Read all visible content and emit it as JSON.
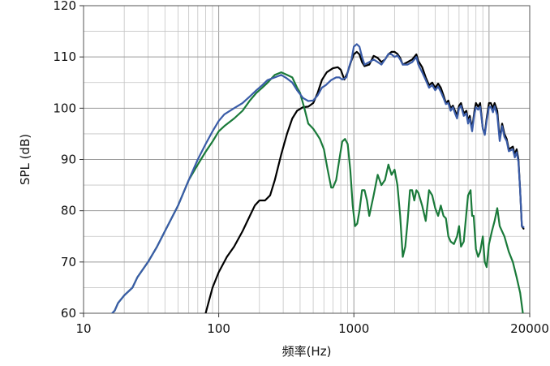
{
  "chart_data": {
    "type": "line",
    "title": "",
    "xlabel": "频率(Hz)",
    "ylabel": "SPL (dB)",
    "xscale": "log",
    "xlim": [
      10,
      20000
    ],
    "ylim": [
      60,
      120
    ],
    "grid": true,
    "legend": "none",
    "x_tick_labels": [
      {
        "value": 10,
        "label": "10"
      },
      {
        "value": 100,
        "label": "100"
      },
      {
        "value": 1000,
        "label": "1000"
      },
      {
        "value": 20000,
        "label": "20000"
      }
    ],
    "y_tick_labels": [
      {
        "value": 60,
        "label": "60"
      },
      {
        "value": 70,
        "label": "70"
      },
      {
        "value": 80,
        "label": "80"
      },
      {
        "value": 90,
        "label": "90"
      },
      {
        "value": 100,
        "label": "100"
      },
      {
        "value": 110,
        "label": "110"
      },
      {
        "value": 120,
        "label": "120"
      }
    ],
    "series": [
      {
        "color": "#000000",
        "points": [
          [
            75,
            58
          ],
          [
            80,
            60
          ],
          [
            90,
            65
          ],
          [
            100,
            68
          ],
          [
            115,
            71
          ],
          [
            130,
            73
          ],
          [
            150,
            76
          ],
          [
            170,
            79
          ],
          [
            185,
            81
          ],
          [
            200,
            82
          ],
          [
            220,
            82
          ],
          [
            240,
            83
          ],
          [
            260,
            86
          ],
          [
            290,
            91
          ],
          [
            320,
            95
          ],
          [
            350,
            98
          ],
          [
            380,
            99.5
          ],
          [
            420,
            100.2
          ],
          [
            460,
            100.3
          ],
          [
            500,
            101
          ],
          [
            540,
            103
          ],
          [
            580,
            105.5
          ],
          [
            630,
            107
          ],
          [
            700,
            107.8
          ],
          [
            760,
            108
          ],
          [
            800,
            107.5
          ],
          [
            850,
            105.6
          ],
          [
            900,
            107
          ],
          [
            950,
            109
          ],
          [
            1000,
            110.5
          ],
          [
            1050,
            111
          ],
          [
            1100,
            110.5
          ],
          [
            1150,
            109
          ],
          [
            1200,
            108.2
          ],
          [
            1300,
            108.5
          ],
          [
            1400,
            110.2
          ],
          [
            1500,
            109.8
          ],
          [
            1600,
            109
          ],
          [
            1700,
            109.5
          ],
          [
            1800,
            110.5
          ],
          [
            1900,
            111
          ],
          [
            2000,
            111
          ],
          [
            2100,
            110.6
          ],
          [
            2200,
            109.8
          ],
          [
            2300,
            108.5
          ],
          [
            2500,
            109
          ],
          [
            2700,
            109.5
          ],
          [
            2900,
            110.5
          ],
          [
            3000,
            109.2
          ],
          [
            3200,
            108
          ],
          [
            3400,
            106
          ],
          [
            3600,
            104.5
          ],
          [
            3800,
            105
          ],
          [
            4000,
            104
          ],
          [
            4200,
            104.8
          ],
          [
            4400,
            104
          ],
          [
            4600,
            102.5
          ],
          [
            4800,
            101
          ],
          [
            5000,
            101.5
          ],
          [
            5200,
            100
          ],
          [
            5400,
            100.5
          ],
          [
            5600,
            99.5
          ],
          [
            5800,
            98.5
          ],
          [
            6000,
            100.5
          ],
          [
            6200,
            101
          ],
          [
            6500,
            99
          ],
          [
            6800,
            99.5
          ],
          [
            7000,
            97.5
          ],
          [
            7200,
            98.5
          ],
          [
            7500,
            96
          ],
          [
            7800,
            99.5
          ],
          [
            8000,
            101
          ],
          [
            8300,
            100.3
          ],
          [
            8600,
            101
          ],
          [
            9000,
            96
          ],
          [
            9300,
            95
          ],
          [
            9600,
            98
          ],
          [
            10000,
            101
          ],
          [
            10300,
            101
          ],
          [
            10700,
            100
          ],
          [
            11000,
            101
          ],
          [
            11500,
            99.5
          ],
          [
            12000,
            94
          ],
          [
            12500,
            97
          ],
          [
            13000,
            95
          ],
          [
            13500,
            94
          ],
          [
            14000,
            92
          ],
          [
            15000,
            92.5
          ],
          [
            15500,
            91
          ],
          [
            16000,
            92
          ],
          [
            16500,
            90
          ],
          [
            17000,
            84
          ],
          [
            17500,
            77
          ],
          [
            18000,
            76.5
          ]
        ]
      },
      {
        "color": "#1a7a3a",
        "points": [
          [
            15,
            59
          ],
          [
            17,
            60.5
          ],
          [
            18,
            62
          ],
          [
            20,
            63.5
          ],
          [
            23,
            65
          ],
          [
            25,
            67
          ],
          [
            30,
            70
          ],
          [
            35,
            73
          ],
          [
            40,
            76
          ],
          [
            50,
            81
          ],
          [
            60,
            86
          ],
          [
            70,
            89
          ],
          [
            80,
            91.5
          ],
          [
            90,
            93.5
          ],
          [
            100,
            95.5
          ],
          [
            110,
            96.5
          ],
          [
            130,
            98
          ],
          [
            150,
            99.5
          ],
          [
            170,
            101.5
          ],
          [
            190,
            103
          ],
          [
            210,
            104
          ],
          [
            230,
            105
          ],
          [
            260,
            106.5
          ],
          [
            290,
            107
          ],
          [
            320,
            106.5
          ],
          [
            350,
            106
          ],
          [
            380,
            104
          ],
          [
            400,
            103
          ],
          [
            430,
            100
          ],
          [
            460,
            97
          ],
          [
            500,
            96
          ],
          [
            530,
            95
          ],
          [
            560,
            94
          ],
          [
            600,
            92
          ],
          [
            640,
            88
          ],
          [
            680,
            84.5
          ],
          [
            700,
            84.5
          ],
          [
            740,
            86
          ],
          [
            780,
            90
          ],
          [
            820,
            93.5
          ],
          [
            860,
            94
          ],
          [
            900,
            93
          ],
          [
            940,
            88
          ],
          [
            980,
            81
          ],
          [
            1020,
            77
          ],
          [
            1060,
            77.5
          ],
          [
            1100,
            80
          ],
          [
            1150,
            84
          ],
          [
            1200,
            84
          ],
          [
            1250,
            82
          ],
          [
            1300,
            79
          ],
          [
            1400,
            83
          ],
          [
            1500,
            87
          ],
          [
            1600,
            85
          ],
          [
            1700,
            86
          ],
          [
            1800,
            89
          ],
          [
            1900,
            87
          ],
          [
            2000,
            88
          ],
          [
            2100,
            85
          ],
          [
            2200,
            79
          ],
          [
            2300,
            71
          ],
          [
            2400,
            73
          ],
          [
            2500,
            78
          ],
          [
            2600,
            84
          ],
          [
            2700,
            84
          ],
          [
            2800,
            82
          ],
          [
            2900,
            84
          ],
          [
            3000,
            83.5
          ],
          [
            3200,
            81
          ],
          [
            3400,
            78
          ],
          [
            3600,
            84
          ],
          [
            3800,
            83
          ],
          [
            4000,
            80.5
          ],
          [
            4200,
            79
          ],
          [
            4400,
            81
          ],
          [
            4600,
            79
          ],
          [
            4800,
            78.5
          ],
          [
            5000,
            75
          ],
          [
            5200,
            74
          ],
          [
            5500,
            73.5
          ],
          [
            5800,
            75
          ],
          [
            6000,
            77
          ],
          [
            6200,
            73
          ],
          [
            6500,
            74
          ],
          [
            6800,
            79.5
          ],
          [
            7000,
            83
          ],
          [
            7300,
            84
          ],
          [
            7500,
            79
          ],
          [
            7700,
            79
          ],
          [
            8000,
            72.5
          ],
          [
            8300,
            71
          ],
          [
            8600,
            72
          ],
          [
            9000,
            75
          ],
          [
            9300,
            70
          ],
          [
            9600,
            69
          ],
          [
            10000,
            73.5
          ],
          [
            10500,
            76
          ],
          [
            11000,
            78
          ],
          [
            11500,
            80.5
          ],
          [
            12000,
            77
          ],
          [
            13000,
            75
          ],
          [
            14000,
            72
          ],
          [
            15000,
            70
          ],
          [
            16000,
            67
          ],
          [
            17000,
            64
          ],
          [
            18000,
            59
          ]
        ]
      },
      {
        "color": "#3a5ca8",
        "points": [
          [
            15,
            59
          ],
          [
            17,
            60.5
          ],
          [
            18,
            62
          ],
          [
            20,
            63.5
          ],
          [
            23,
            65
          ],
          [
            25,
            67
          ],
          [
            30,
            70
          ],
          [
            35,
            73
          ],
          [
            40,
            76
          ],
          [
            50,
            81
          ],
          [
            60,
            86
          ],
          [
            70,
            90
          ],
          [
            80,
            93
          ],
          [
            90,
            95.5
          ],
          [
            100,
            97.5
          ],
          [
            110,
            98.8
          ],
          [
            130,
            100
          ],
          [
            150,
            101
          ],
          [
            170,
            102.3
          ],
          [
            190,
            103.5
          ],
          [
            210,
            104.5
          ],
          [
            230,
            105.5
          ],
          [
            260,
            106
          ],
          [
            290,
            106.5
          ],
          [
            320,
            105.8
          ],
          [
            350,
            105
          ],
          [
            380,
            103.5
          ],
          [
            420,
            102
          ],
          [
            460,
            101.4
          ],
          [
            500,
            101.5
          ],
          [
            540,
            102.5
          ],
          [
            580,
            104
          ],
          [
            620,
            104.5
          ],
          [
            680,
            105.5
          ],
          [
            740,
            106
          ],
          [
            780,
            106
          ],
          [
            820,
            105.6
          ],
          [
            880,
            106
          ],
          [
            920,
            108
          ],
          [
            960,
            109.5
          ],
          [
            1000,
            112
          ],
          [
            1050,
            112.5
          ],
          [
            1100,
            112
          ],
          [
            1150,
            110
          ],
          [
            1200,
            108.5
          ],
          [
            1300,
            109
          ],
          [
            1400,
            109.5
          ],
          [
            1500,
            109
          ],
          [
            1600,
            108.5
          ],
          [
            1700,
            109.5
          ],
          [
            1800,
            110.6
          ],
          [
            1900,
            110.5
          ],
          [
            2000,
            110
          ],
          [
            2100,
            110.3
          ],
          [
            2200,
            109.5
          ],
          [
            2300,
            108.5
          ],
          [
            2500,
            108.5
          ],
          [
            2700,
            109
          ],
          [
            2900,
            110
          ],
          [
            3000,
            108.5
          ],
          [
            3200,
            107
          ],
          [
            3400,
            105.5
          ],
          [
            3600,
            104
          ],
          [
            3800,
            104.5
          ],
          [
            4000,
            103.5
          ],
          [
            4200,
            104.2
          ],
          [
            4400,
            103.2
          ],
          [
            4600,
            102
          ],
          [
            4800,
            100.8
          ],
          [
            5000,
            101
          ],
          [
            5200,
            99.5
          ],
          [
            5400,
            100.2
          ],
          [
            5600,
            99
          ],
          [
            5800,
            98
          ],
          [
            6000,
            100
          ],
          [
            6200,
            100.5
          ],
          [
            6500,
            98.5
          ],
          [
            6800,
            99
          ],
          [
            7000,
            97
          ],
          [
            7200,
            98
          ],
          [
            7500,
            95.5
          ],
          [
            7800,
            99
          ],
          [
            8000,
            100.2
          ],
          [
            8300,
            99.7
          ],
          [
            8600,
            100.3
          ],
          [
            9000,
            96
          ],
          [
            9300,
            94.8
          ],
          [
            9600,
            97.5
          ],
          [
            10000,
            100.2
          ],
          [
            10300,
            100.3
          ],
          [
            10700,
            99.2
          ],
          [
            11000,
            100.4
          ],
          [
            11500,
            98.6
          ],
          [
            12000,
            93.6
          ],
          [
            12500,
            96.5
          ],
          [
            13000,
            94.4
          ],
          [
            13500,
            93.6
          ],
          [
            14000,
            91.6
          ],
          [
            15000,
            92
          ],
          [
            15500,
            90.4
          ],
          [
            16000,
            91.4
          ],
          [
            16500,
            89.5
          ],
          [
            17000,
            84
          ],
          [
            17500,
            77
          ],
          [
            18000,
            76.8
          ]
        ]
      }
    ]
  }
}
